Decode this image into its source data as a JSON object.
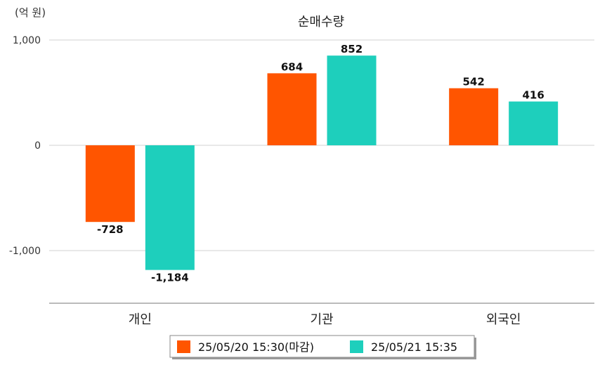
{
  "unit_label": "(억 원)",
  "chart_data": {
    "type": "bar",
    "title": "순매수량",
    "categories": [
      "개인",
      "기관",
      "외국인"
    ],
    "series": [
      {
        "name": "25/05/20 15:30(마감)",
        "color": "#ff5500",
        "values": [
          -728,
          684,
          542
        ]
      },
      {
        "name": "25/05/21 15:35",
        "color": "#1ecfbc",
        "values": [
          -1184,
          852,
          416
        ]
      }
    ],
    "value_labels": [
      [
        "-728",
        "684",
        "542"
      ],
      [
        "-1,184",
        "852",
        "416"
      ]
    ],
    "yticks": [
      1000,
      0,
      -1000
    ],
    "ytick_labels": [
      "1,000",
      "0",
      "-1,000"
    ],
    "ylim": [
      -1500,
      1000
    ],
    "grid": true,
    "legend_position": "bottom"
  }
}
